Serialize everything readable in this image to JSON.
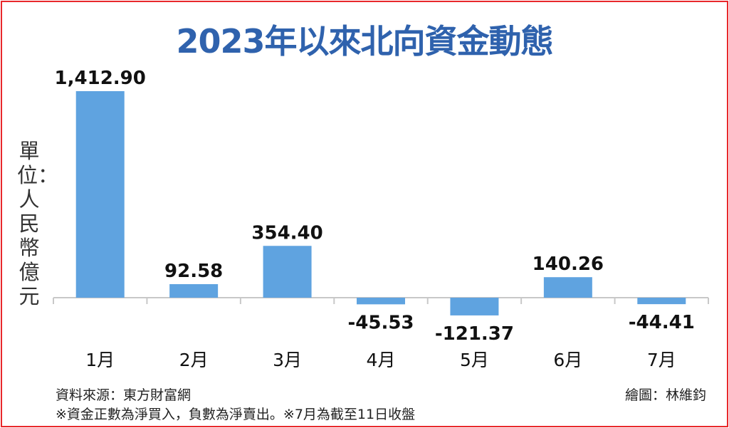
{
  "title": "2023年以來北向資金動態",
  "unit_label": "單位：人民幣億元",
  "footer": {
    "source": "資料來源：東方財富網",
    "note": "※資金正數為淨買入，負數為淨賣出。※7月為截至11日收盤",
    "credit": "繪圖：林維鈞"
  },
  "colors": {
    "frame": "#e8282b",
    "title": "#2f62ad",
    "bar": "#5fa3e0",
    "axis": "#c8c8c8"
  },
  "chart_data": {
    "type": "bar",
    "title": "2023年以來北向資金動態",
    "ylabel": "單位：人民幣億元",
    "xlabel": "",
    "categories": [
      "1月",
      "2月",
      "3月",
      "4月",
      "5月",
      "6月",
      "7月"
    ],
    "values": [
      1412.9,
      92.58,
      354.4,
      -45.53,
      -121.37,
      140.26,
      -44.41
    ],
    "value_labels": [
      "1,412.90",
      "92.58",
      "354.40",
      "-45.53",
      "-121.37",
      "140.26",
      "-44.41"
    ],
    "ylim": [
      -260,
      1420
    ],
    "grid": false,
    "legend": "none"
  }
}
